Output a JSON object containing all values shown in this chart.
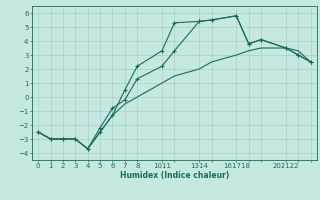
{
  "xlabel": "Humidex (Indice chaleur)",
  "background_color": "#c5e8e0",
  "grid_color": "#a8cfc8",
  "line_color": "#1a6b60",
  "xlim": [
    -0.5,
    22.5
  ],
  "ylim": [
    -4.5,
    6.5
  ],
  "xtick_positions": [
    0,
    1,
    2,
    3,
    4,
    5,
    6,
    7,
    8,
    10,
    11,
    13,
    14,
    16,
    17,
    18,
    20,
    21,
    22
  ],
  "xtick_labels": [
    "0",
    "1",
    "2",
    "3",
    "4",
    "5",
    "6",
    "7",
    "8",
    "1011",
    "",
    "1314",
    "",
    "161718",
    "",
    "",
    "202122",
    "",
    ""
  ],
  "yticks": [
    -4,
    -3,
    -2,
    -1,
    0,
    1,
    2,
    3,
    4,
    5,
    6
  ],
  "line1_x": [
    0,
    1,
    2,
    3,
    4,
    5,
    6,
    7,
    8,
    10,
    11,
    13,
    14,
    16,
    17,
    18,
    20,
    21,
    22
  ],
  "line1_y": [
    -2.5,
    -3.0,
    -3.0,
    -3.0,
    -3.7,
    -2.5,
    -1.3,
    0.5,
    2.2,
    3.3,
    5.3,
    5.4,
    5.5,
    5.8,
    3.8,
    4.1,
    3.5,
    3.0,
    2.5
  ],
  "line2_x": [
    0,
    1,
    2,
    3,
    4,
    5,
    6,
    7,
    8,
    10,
    11,
    13,
    14,
    16,
    17,
    18,
    20,
    21,
    22
  ],
  "line2_y": [
    -2.5,
    -3.0,
    -3.0,
    -3.0,
    -3.7,
    -2.2,
    -0.8,
    -0.2,
    1.3,
    2.2,
    3.3,
    5.4,
    5.5,
    5.8,
    3.8,
    4.1,
    3.5,
    3.0,
    2.5
  ],
  "line3_x": [
    0,
    1,
    2,
    3,
    4,
    5,
    6,
    7,
    8,
    10,
    11,
    13,
    14,
    16,
    17,
    18,
    20,
    21,
    22
  ],
  "line3_y": [
    -2.5,
    -3.0,
    -3.0,
    -3.0,
    -3.7,
    -2.5,
    -1.3,
    -0.5,
    0.0,
    1.0,
    1.5,
    2.0,
    2.5,
    3.0,
    3.3,
    3.5,
    3.5,
    3.3,
    2.5
  ],
  "marker": "+"
}
